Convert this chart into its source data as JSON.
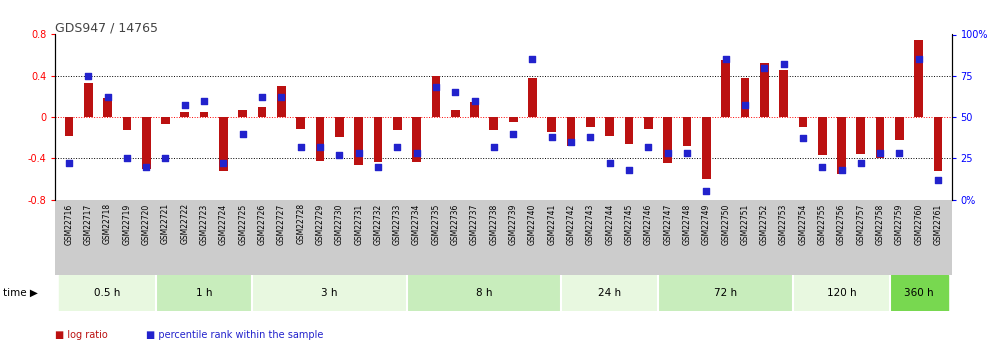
{
  "title": "GDS947 / 14765",
  "samples": [
    "GSM22716",
    "GSM22717",
    "GSM22718",
    "GSM22719",
    "GSM22720",
    "GSM22721",
    "GSM22722",
    "GSM22723",
    "GSM22724",
    "GSM22725",
    "GSM22726",
    "GSM22727",
    "GSM22728",
    "GSM22729",
    "GSM22730",
    "GSM22731",
    "GSM22732",
    "GSM22733",
    "GSM22734",
    "GSM22735",
    "GSM22736",
    "GSM22737",
    "GSM22738",
    "GSM22739",
    "GSM22740",
    "GSM22741",
    "GSM22742",
    "GSM22743",
    "GSM22744",
    "GSM22745",
    "GSM22746",
    "GSM22747",
    "GSM22748",
    "GSM22749",
    "GSM22750",
    "GSM22751",
    "GSM22752",
    "GSM22753",
    "GSM22754",
    "GSM22755",
    "GSM22756",
    "GSM22757",
    "GSM22758",
    "GSM22759",
    "GSM22760",
    "GSM22761"
  ],
  "log_ratio": [
    -0.18,
    0.33,
    0.18,
    -0.13,
    -0.5,
    -0.07,
    0.05,
    0.05,
    -0.52,
    0.07,
    0.1,
    0.3,
    -0.12,
    -0.43,
    -0.19,
    -0.47,
    -0.44,
    -0.13,
    -0.44,
    0.4,
    0.07,
    0.15,
    -0.13,
    -0.05,
    0.38,
    -0.15,
    -0.28,
    -0.1,
    -0.18,
    -0.26,
    -0.12,
    -0.45,
    -0.28,
    -0.6,
    0.55,
    0.38,
    0.52,
    0.46,
    -0.1,
    -0.37,
    -0.55,
    -0.36,
    -0.4,
    -0.22,
    0.75,
    -0.52
  ],
  "percentile": [
    22,
    75,
    62,
    25,
    20,
    25,
    57,
    60,
    22,
    40,
    62,
    62,
    32,
    32,
    27,
    28,
    20,
    32,
    28,
    68,
    65,
    60,
    32,
    40,
    85,
    38,
    35,
    38,
    22,
    18,
    32,
    28,
    28,
    5,
    85,
    57,
    80,
    82,
    37,
    20,
    18,
    22,
    28,
    28,
    85,
    12
  ],
  "time_groups": [
    {
      "label": "0.5 h",
      "start": 0,
      "end": 5
    },
    {
      "label": "1 h",
      "start": 5,
      "end": 10
    },
    {
      "label": "3 h",
      "start": 10,
      "end": 18
    },
    {
      "label": "8 h",
      "start": 18,
      "end": 26
    },
    {
      "label": "24 h",
      "start": 26,
      "end": 31
    },
    {
      "label": "72 h",
      "start": 31,
      "end": 38
    },
    {
      "label": "120 h",
      "start": 38,
      "end": 43
    },
    {
      "label": "360 h",
      "start": 43,
      "end": 46
    }
  ],
  "group_colors": [
    "#e8f8e0",
    "#c8edbc",
    "#e8f8e0",
    "#c8edbc",
    "#e8f8e0",
    "#c8edbc",
    "#e8f8e0",
    "#78d850"
  ],
  "bar_color": "#bb1111",
  "dot_color": "#2222cc",
  "ylim_left": [
    -0.8,
    0.8
  ],
  "ylim_right": [
    0,
    100
  ],
  "yticks_left": [
    -0.8,
    -0.4,
    0.0,
    0.4,
    0.8
  ],
  "yticks_right": [
    0,
    25,
    50,
    75,
    100
  ],
  "ytick_labels_right": [
    "0%",
    "25",
    "50",
    "75",
    "100%"
  ],
  "title_fontsize": 9,
  "label_fontsize": 5.5,
  "tick_fontsize": 7
}
